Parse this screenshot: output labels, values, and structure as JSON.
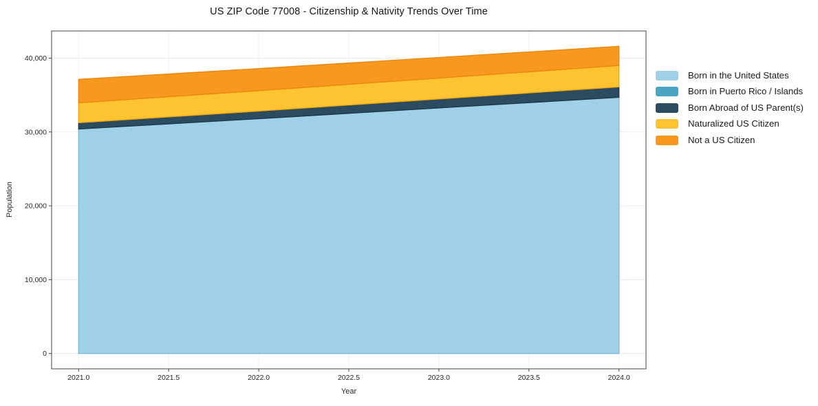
{
  "chart_data": {
    "type": "area",
    "stacked": true,
    "title": "US ZIP Code 77008 - Citizenship & Nativity Trends Over Time",
    "xlabel": "Year",
    "ylabel": "Population",
    "x": [
      2021,
      2022,
      2023,
      2024
    ],
    "series": [
      {
        "name": "Born in the United States",
        "color": "#9fd0e8",
        "edge_color": "#7eb6d4",
        "values": [
          30400,
          31800,
          33250,
          34700
        ]
      },
      {
        "name": "Born in Puerto Rico / Islands",
        "color": "#4aa5c4",
        "edge_color": "#3d96b5",
        "values": [
          0,
          0,
          0,
          0
        ]
      },
      {
        "name": "Born Abroad of US Parent(s)",
        "color": "#2b4b61",
        "edge_color": "#1f3747",
        "values": [
          850,
          1030,
          1220,
          1400
        ]
      },
      {
        "name": "Naturalized US Citizen",
        "color": "#fdc330",
        "edge_color": "#efa50f",
        "values": [
          2700,
          2770,
          2830,
          2900
        ]
      },
      {
        "name": "Not a US Citizen",
        "color": "#f8981f",
        "edge_color": "#e8860d",
        "values": [
          3180,
          2990,
          2790,
          2600
        ]
      }
    ],
    "totals_by_year": [
      37130,
      38590,
      40090,
      41600
    ],
    "xticks": {
      "values": [
        2021.0,
        2021.5,
        2022.0,
        2022.5,
        2023.0,
        2023.5,
        2024.0
      ],
      "labels": [
        "2021.0",
        "2021.5",
        "2022.0",
        "2022.5",
        "2023.0",
        "2023.5",
        "2024.0"
      ]
    },
    "yticks": {
      "values": [
        0,
        10000,
        20000,
        30000,
        40000
      ],
      "labels": [
        "0",
        "10,000",
        "20,000",
        "30,000",
        "40,000"
      ]
    },
    "xlim": [
      2020.85,
      2024.15
    ],
    "ylim": [
      -2080,
      43680
    ],
    "grid": true,
    "legend_position": "right-outside",
    "colors": {
      "grid_horizontal": "#ececec",
      "grid_vertical": "#f0f0f0",
      "frame": "#404040",
      "tick_label": "#262626",
      "background": "#ffffff"
    }
  }
}
